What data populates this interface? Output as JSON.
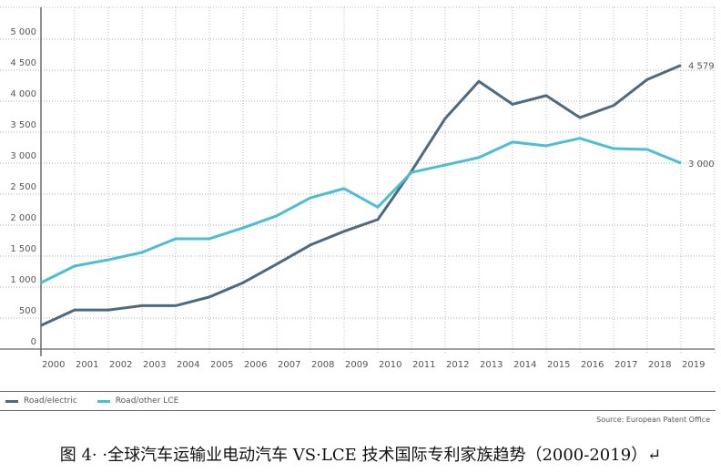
{
  "chart_data": {
    "type": "line",
    "title": "",
    "xlabel": "",
    "ylabel": "",
    "ylim": [
      0,
      5500
    ],
    "grid": true,
    "x": [
      "2000",
      "2001",
      "2002",
      "2003",
      "2004",
      "2005",
      "2006",
      "2007",
      "2008",
      "2009",
      "2010",
      "2011",
      "2012",
      "2013",
      "2014",
      "2015",
      "2016",
      "2017",
      "2018",
      "2019"
    ],
    "yticks": [
      0,
      500,
      1000,
      1500,
      2000,
      2500,
      3000,
      3500,
      4000,
      4500,
      5000
    ],
    "ytick_labels": [
      "0",
      "500",
      "1 000",
      "1 500",
      "2 000",
      "2 500",
      "3 000",
      "3 500",
      "4 000",
      "4 500",
      "5 000"
    ],
    "series": [
      {
        "name": "Road/electric",
        "color": "#4d6a80",
        "values": [
          380,
          630,
          630,
          700,
          700,
          840,
          1070,
          1370,
          1680,
          1900,
          2090,
          2870,
          3720,
          4320,
          3950,
          4090,
          3735,
          3930,
          4350,
          4579
        ],
        "end_label": "4 579"
      },
      {
        "name": "Road/other LCE",
        "color": "#4bbfd0",
        "values": [
          1070,
          1340,
          1440,
          1560,
          1780,
          1780,
          1955,
          2150,
          2440,
          2590,
          2290,
          2850,
          2970,
          3090,
          3340,
          3280,
          3400,
          3235,
          3220,
          3000
        ],
        "end_label": "3 000"
      }
    ],
    "legend_position": "bottom-left",
    "source": "Source: European Patent Office"
  },
  "caption": "图 4· ·全球汽车运输业电动汽车 VS·LCE 技术国际专利家族趋势（2000-2019）↵"
}
